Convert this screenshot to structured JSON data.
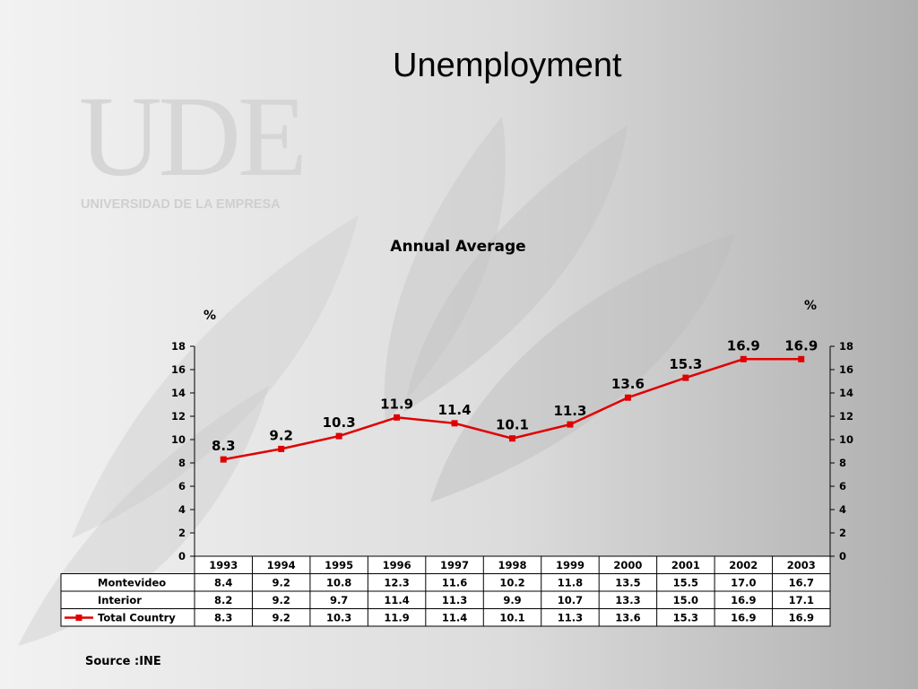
{
  "slide": {
    "title": "Unemployment",
    "source": "Source :INE"
  },
  "logo": {
    "letters": "UDE",
    "subtitle": "UNIVERSIDAD DE LA EMPRESA"
  },
  "colors": {
    "series_line": "#e00000",
    "axis": "#000000",
    "logo": "#d4d4d4"
  },
  "chart_data": {
    "type": "line",
    "title": "Annual Average",
    "ylabel_left": "%",
    "ylabel_right": "%",
    "ylim": [
      0,
      18
    ],
    "yticks": [
      0,
      2,
      4,
      6,
      8,
      10,
      12,
      14,
      16,
      18
    ],
    "categories": [
      "1993",
      "1994",
      "1995",
      "1996",
      "1997",
      "1998",
      "1999",
      "2000",
      "2001",
      "2002",
      "2003"
    ],
    "legend_placement": "table-row",
    "series": [
      {
        "name": "Total Country",
        "values": [
          8.3,
          9.2,
          10.3,
          11.9,
          11.4,
          10.1,
          11.3,
          13.6,
          15.3,
          16.9,
          16.9
        ],
        "plotted": true
      }
    ],
    "data_labels": [
      "8.3",
      "9.2",
      "10.3",
      "11.9",
      "11.4",
      "10.1",
      "11.3",
      "13.6",
      "15.3",
      "16.9",
      "16.9"
    ],
    "table": {
      "rows": [
        {
          "name": "Montevideo",
          "values": [
            "8.4",
            "9.2",
            "10.8",
            "12.3",
            "11.6",
            "10.2",
            "11.8",
            "13.5",
            "15.5",
            "17.0",
            "16.7"
          ]
        },
        {
          "name": "Interior",
          "values": [
            "8.2",
            "9.2",
            "9.7",
            "11.4",
            "11.3",
            "9.9",
            "10.7",
            "13.3",
            "15.0",
            "16.9",
            "17.1"
          ]
        },
        {
          "name": "Total Country",
          "values": [
            "8.3",
            "9.2",
            "10.3",
            "11.9",
            "11.4",
            "10.1",
            "11.3",
            "13.6",
            "15.3",
            "16.9",
            "16.9"
          ]
        }
      ]
    }
  }
}
